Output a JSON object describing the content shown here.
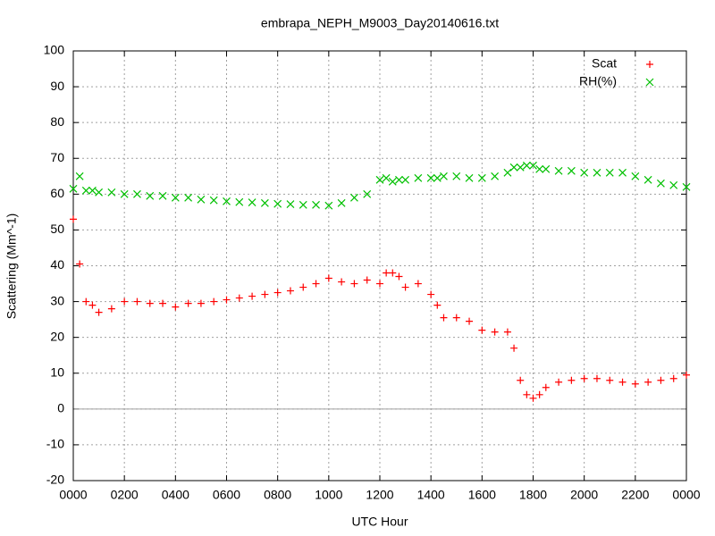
{
  "chart_data": {
    "type": "scatter",
    "title": "embrapa_NEPH_M9003_Day20140616.txt",
    "xlabel": "UTC Hour",
    "ylabel": "Scattering (Mm^-1)",
    "x": [
      0,
      0.25,
      0.5,
      0.75,
      1,
      1.5,
      2,
      2.5,
      3,
      3.5,
      4,
      4.5,
      5,
      5.5,
      6,
      6.5,
      7,
      7.5,
      8,
      8.5,
      9,
      9.5,
      10,
      10.5,
      11,
      11.5,
      12,
      12.25,
      12.5,
      12.75,
      13,
      13.5,
      14,
      14.25,
      14.5,
      15,
      15.5,
      16,
      16.5,
      17,
      17.25,
      17.5,
      17.75,
      18,
      18.25,
      18.5,
      19,
      19.5,
      20,
      20.5,
      21,
      21.5,
      22,
      22.5,
      23,
      23.5,
      24
    ],
    "series": [
      {
        "name": "Scat",
        "color": "#ff0000",
        "marker": "plus",
        "values": [
          53,
          40.5,
          30,
          29,
          27,
          28,
          30,
          30,
          29.5,
          29.5,
          28.5,
          29.5,
          29.5,
          30,
          30.5,
          31,
          31.5,
          32,
          32.5,
          33,
          34,
          35,
          36.5,
          35.5,
          35,
          36,
          35,
          38,
          38,
          37,
          34,
          35,
          32,
          29,
          25.5,
          25.5,
          24.5,
          22,
          21.5,
          21.5,
          17,
          8,
          4,
          3,
          4,
          6,
          7.5,
          8,
          8.5,
          8.5,
          8,
          7.5,
          7,
          7.5,
          8,
          8.5,
          9.5
        ]
      },
      {
        "name": "RH(%)",
        "color": "#00c000",
        "marker": "cross",
        "values": [
          61.5,
          65,
          61,
          61,
          60.5,
          60.5,
          60,
          60,
          59.5,
          59.5,
          59,
          59,
          58.5,
          58.3,
          58,
          57.8,
          57.7,
          57.5,
          57.3,
          57.2,
          57,
          57,
          56.8,
          57.5,
          59,
          60,
          64,
          64.5,
          63.5,
          64,
          64,
          64.5,
          64.5,
          64.5,
          65,
          65,
          64.5,
          64.5,
          65,
          66,
          67.5,
          67.5,
          68,
          68,
          67,
          67,
          66.5,
          66.5,
          66,
          66,
          66,
          66,
          65,
          64,
          63,
          62.5,
          62
        ]
      }
    ],
    "xlim": [
      0,
      24
    ],
    "xticks": [
      {
        "value": 0,
        "label": "0000"
      },
      {
        "value": 2,
        "label": "0200"
      },
      {
        "value": 4,
        "label": "0400"
      },
      {
        "value": 6,
        "label": "0600"
      },
      {
        "value": 8,
        "label": "0800"
      },
      {
        "value": 10,
        "label": "1000"
      },
      {
        "value": 12,
        "label": "1200"
      },
      {
        "value": 14,
        "label": "1400"
      },
      {
        "value": 16,
        "label": "1600"
      },
      {
        "value": 18,
        "label": "1800"
      },
      {
        "value": 20,
        "label": "2000"
      },
      {
        "value": 22,
        "label": "2200"
      },
      {
        "value": 24,
        "label": "0000"
      }
    ],
    "ylim": [
      -20,
      100
    ],
    "yticks": [
      -20,
      -10,
      0,
      10,
      20,
      30,
      40,
      50,
      60,
      70,
      80,
      90,
      100
    ],
    "grid": true,
    "legend": "top-right"
  }
}
